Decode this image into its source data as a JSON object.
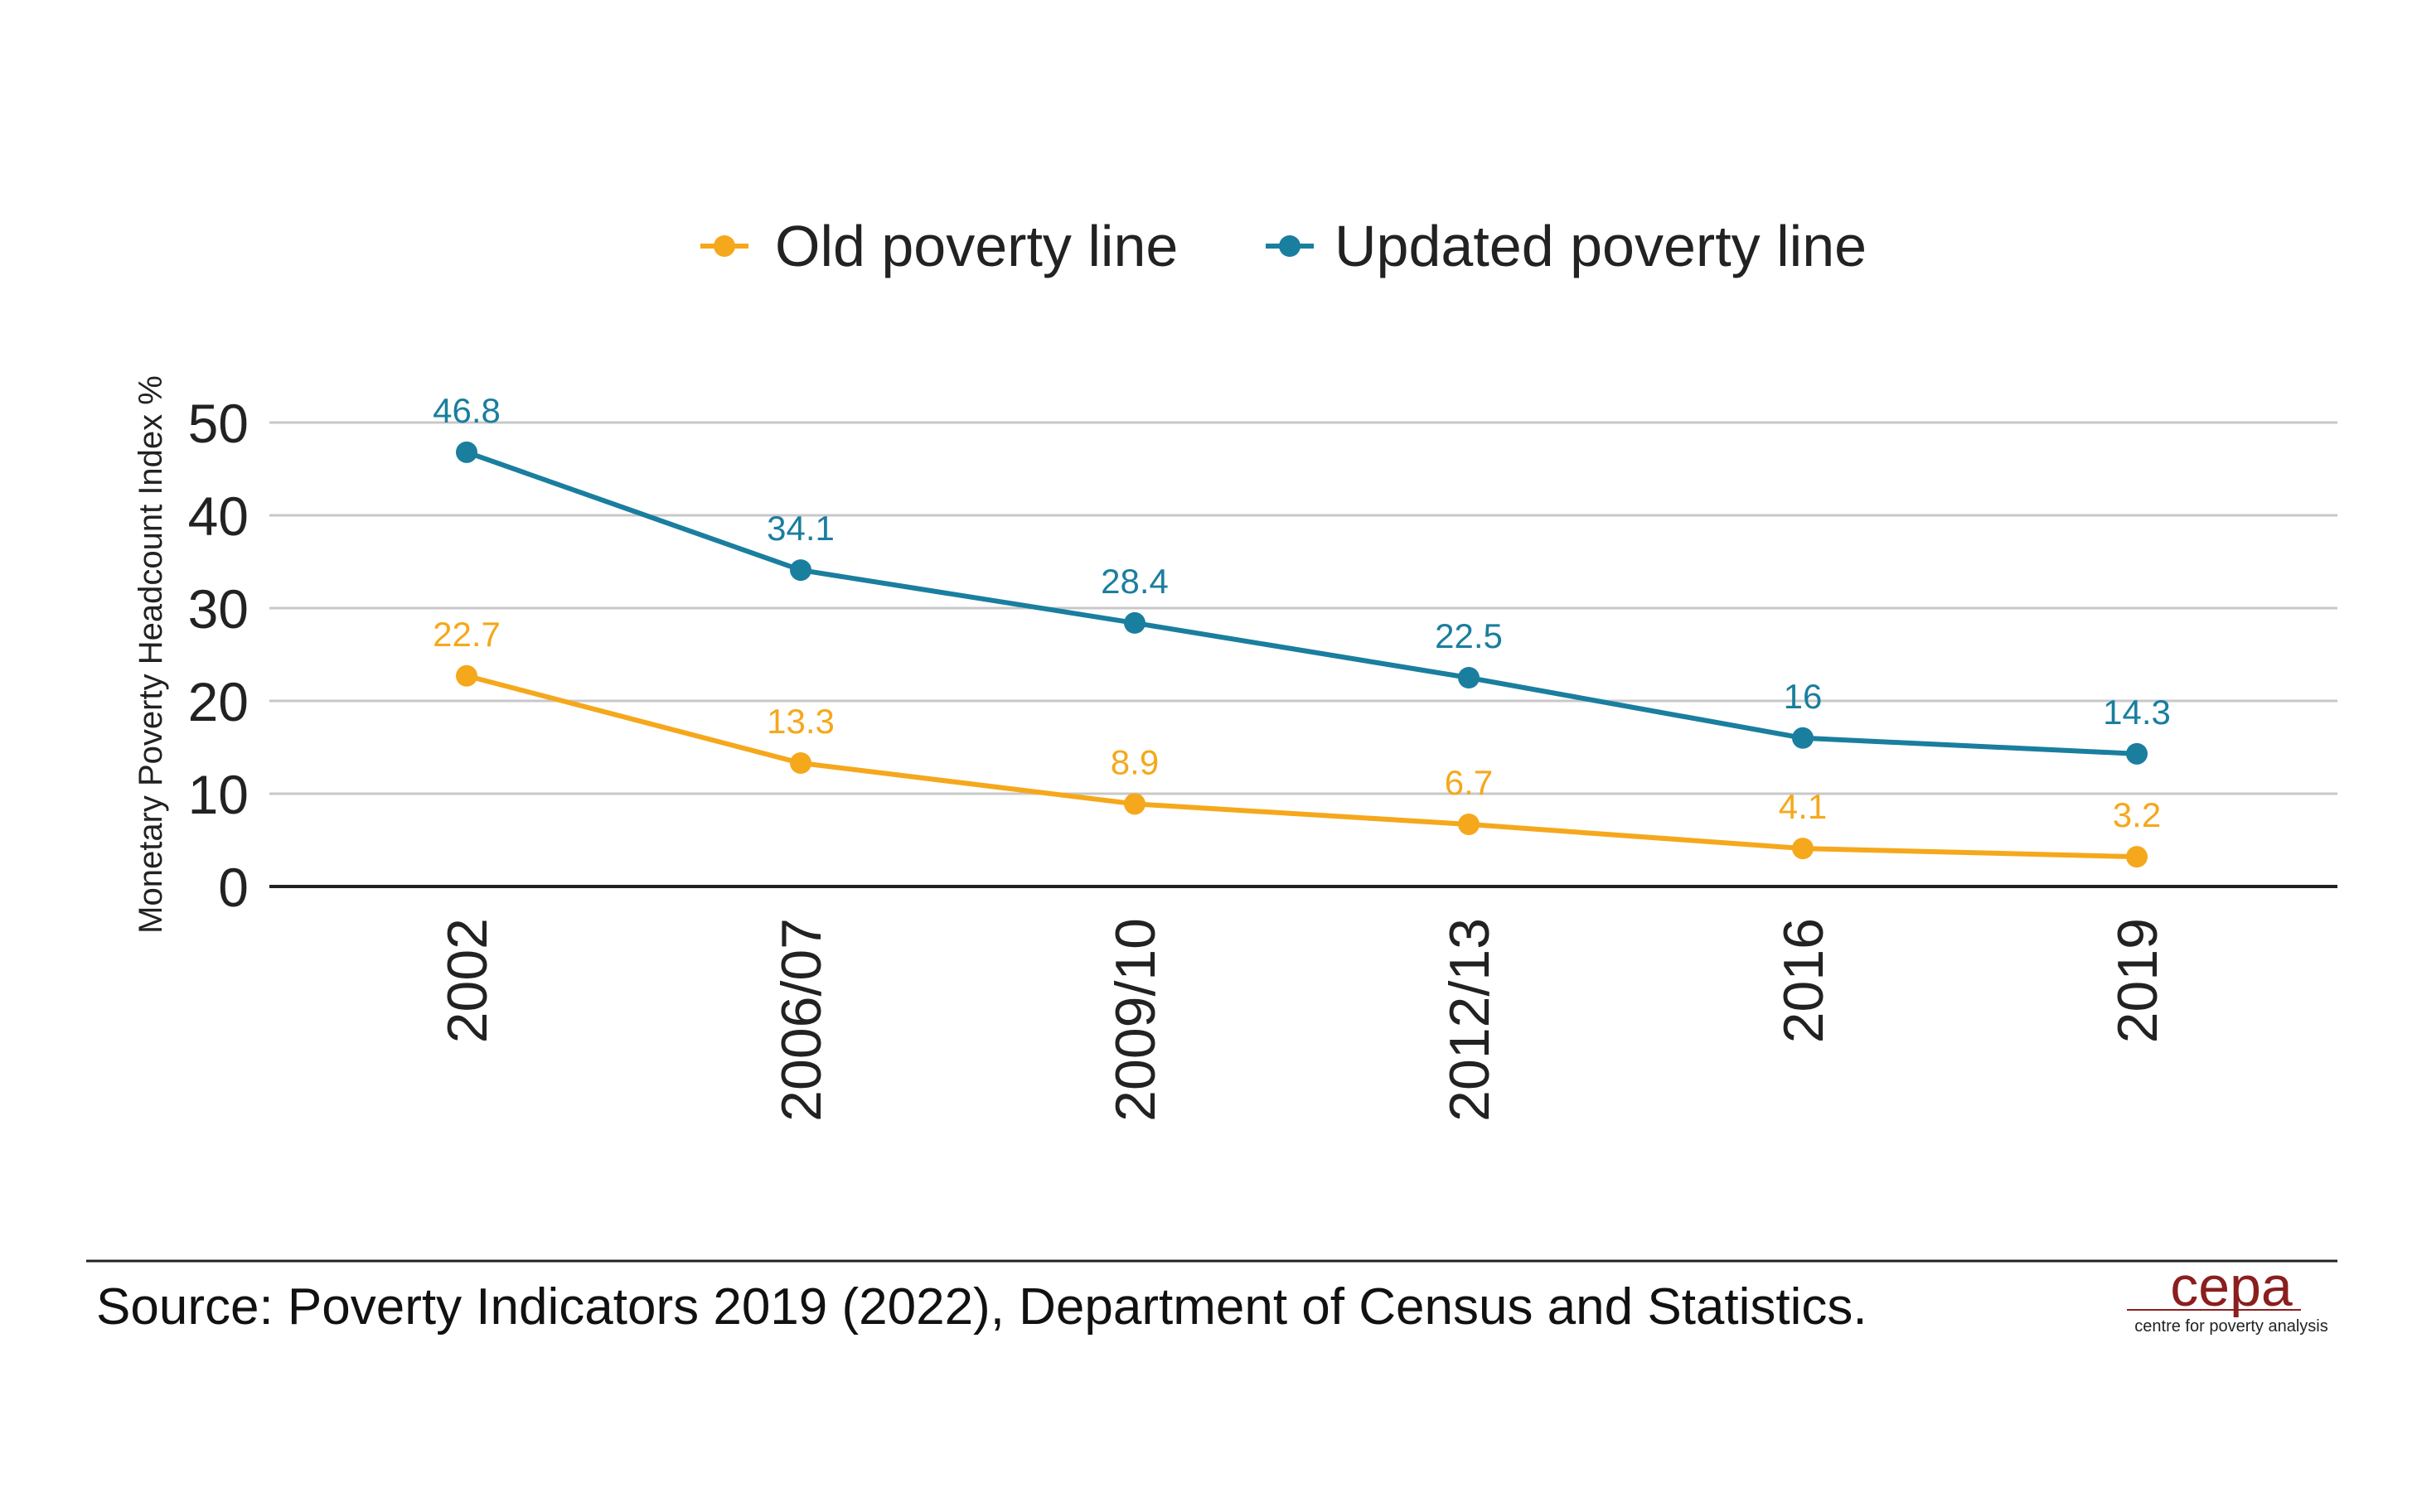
{
  "chart_data": {
    "type": "line",
    "categories": [
      "2002",
      "2006/07",
      "2009/10",
      "2012/13",
      "2016",
      "2019"
    ],
    "series": [
      {
        "name": "Old poverty line",
        "values": [
          22.7,
          13.3,
          8.9,
          6.7,
          4.1,
          3.2
        ],
        "labels": [
          "22.7",
          "13.3",
          "8.9",
          "6.7",
          "4.1",
          "3.2"
        ],
        "color": "#F5A81C"
      },
      {
        "name": "Updated poverty line",
        "values": [
          46.8,
          34.1,
          28.4,
          22.5,
          16,
          14.3
        ],
        "labels": [
          "46.8",
          "34.1",
          "28.4",
          "22.5",
          "16",
          "14.3"
        ],
        "color": "#1A7E9F"
      }
    ],
    "ylabel": "Monetary Poverty Headcount Index %",
    "xlabel": "",
    "ylim": [
      0,
      50
    ],
    "yticks": [
      "0",
      "10",
      "20",
      "30",
      "40",
      "50"
    ],
    "ytick_values": [
      0,
      10,
      20,
      30,
      40,
      50
    ],
    "grid": true,
    "legend_position": "top-center"
  },
  "footer": {
    "source": "Source: Poverty Indicators 2019 (2022), Department of Census and Statistics.",
    "logo_text": "cepa",
    "logo_tagline": "centre for poverty analysis"
  },
  "colors": {
    "grid": "#C8C8C8",
    "axis": "#222222",
    "logo": "#8B1E1E"
  }
}
